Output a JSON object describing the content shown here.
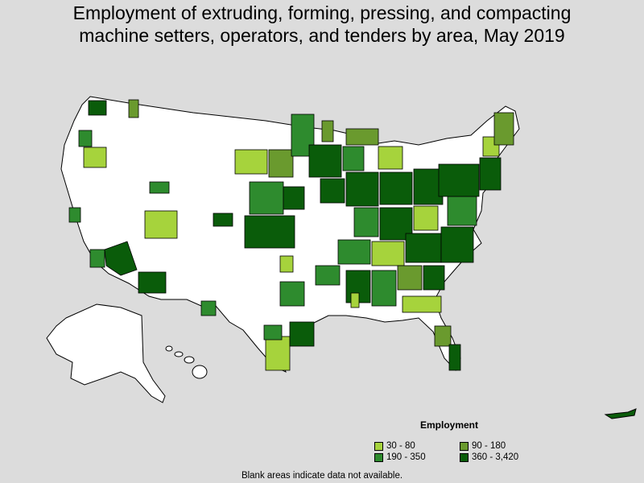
{
  "title_line1": "Employment of extruding, forming, pressing, and compacting",
  "title_line2": "machine setters, operators, and tenders by area, May 2019",
  "legend": {
    "title": "Employment",
    "items": [
      {
        "label": "30 - 80",
        "color": "#a6d33c"
      },
      {
        "label": "90 - 180",
        "color": "#6a9a2e"
      },
      {
        "label": "190 - 350",
        "color": "#2e8b2e"
      },
      {
        "label": "360 - 3,420",
        "color": "#0a5c0a"
      }
    ]
  },
  "note": "Blank areas indicate data not available.",
  "colors": {
    "background": "#dcdcdc",
    "land": "#ffffff",
    "border": "#000000"
  }
}
